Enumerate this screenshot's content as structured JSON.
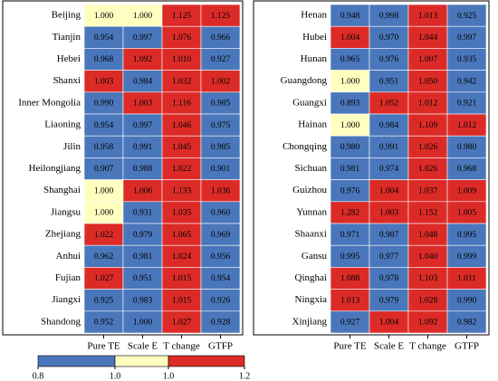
{
  "chart_data": [
    {
      "type": "heatmap",
      "columns": [
        "Pure TE",
        "Scale E",
        "T change",
        "GTFP"
      ],
      "rows": [
        "Beijing",
        "Tianjin",
        "Hebei",
        "Shanxi",
        "Inner Mongolia",
        "Liaoning",
        "Jilin",
        "Heilongjiang",
        "Shanghai",
        "Jiangsu",
        "Zhejiang",
        "Anhui",
        "Fujian",
        "Jiangxi",
        "Shandong"
      ],
      "values": [
        [
          1.0,
          1.0,
          1.125,
          1.125
        ],
        [
          0.954,
          0.997,
          1.076,
          0.966
        ],
        [
          0.968,
          1.092,
          1.01,
          0.927
        ],
        [
          1.003,
          0.984,
          1.032,
          1.002
        ],
        [
          0.99,
          1.003,
          1.116,
          0.985
        ],
        [
          0.954,
          0.997,
          1.046,
          0.975
        ],
        [
          0.958,
          0.991,
          1.045,
          0.985
        ],
        [
          0.907,
          0.988,
          1.022,
          0.901
        ],
        [
          1.0,
          1.006,
          1.133,
          1.036
        ],
        [
          1.0,
          0.931,
          1.035,
          0.96
        ],
        [
          1.022,
          0.979,
          1.065,
          0.969
        ],
        [
          0.962,
          0.981,
          1.024,
          0.956
        ],
        [
          1.027,
          0.951,
          1.015,
          0.954
        ],
        [
          0.925,
          0.983,
          1.015,
          0.926
        ],
        [
          0.952,
          0.9996,
          1.027,
          0.928
        ]
      ],
      "value_labels": [
        [
          "1.000",
          "1.000",
          "1.125",
          "1.125"
        ],
        [
          "0.954",
          "0.997",
          "1.076",
          "0.966"
        ],
        [
          "0.968",
          "1.092",
          "1.010",
          "0.927"
        ],
        [
          "1.003",
          "0.984",
          "1.032",
          "1.002"
        ],
        [
          "0.990",
          "1.003",
          "1.116",
          "0.985"
        ],
        [
          "0.954",
          "0.997",
          "1.046",
          "0.975"
        ],
        [
          "0.958",
          "0.991",
          "1.045",
          "0.985"
        ],
        [
          "0.907",
          "0.988",
          "1.022",
          "0.901"
        ],
        [
          "1.000",
          "1.006",
          "1.133",
          "1.036"
        ],
        [
          "1.000",
          "0.931",
          "1.035",
          "0.960"
        ],
        [
          "1.022",
          "0.979",
          "1.065",
          "0.969"
        ],
        [
          "0.962",
          "0.981",
          "1.024",
          "0.956"
        ],
        [
          "1.027",
          "0.951",
          "1.015",
          "0.954"
        ],
        [
          "0.925",
          "0.983",
          "1.015",
          "0.926"
        ],
        [
          "0.952",
          "1.000",
          "1.027",
          "0.928"
        ]
      ],
      "color_scale": {
        "ticks": [
          0.8,
          {
            "value": 1,
            "label": "1.0"
          },
          {
            "value": 1,
            "label": "1.0"
          },
          1.2
        ],
        "colors": [
          "#4a77bb",
          "#ffffc0",
          "#dc2b27"
        ]
      }
    },
    {
      "type": "heatmap",
      "columns": [
        "Pure TE",
        "Scale E",
        "T change",
        "GTFP"
      ],
      "rows": [
        "Henan",
        "Hubei",
        "Hunan",
        "Guangdong",
        "Guangxi",
        "Hainan",
        "Chongqing",
        "Sichuan",
        "Guizhou",
        "Yunnan",
        "Shaanxi",
        "Gansu",
        "Qinghai",
        "Ningxia",
        "Xinjiang"
      ],
      "values": [
        [
          0.948,
          0.998,
          1.013,
          0.925
        ],
        [
          1.004,
          0.97,
          1.044,
          0.997
        ],
        [
          0.965,
          0.976,
          1.007,
          0.935
        ],
        [
          1.0,
          0.951,
          1.05,
          0.942
        ],
        [
          0.893,
          1.052,
          1.012,
          0.921
        ],
        [
          1.0,
          0.984,
          1.109,
          1.012
        ],
        [
          0.98,
          0.991,
          1.026,
          0.98
        ],
        [
          0.981,
          0.974,
          1.026,
          0.968
        ],
        [
          0.976,
          1.004,
          1.037,
          1.009
        ],
        [
          1.282,
          1.003,
          1.152,
          1.005
        ],
        [
          0.971,
          0.987,
          1.048,
          0.995
        ],
        [
          0.995,
          0.977,
          1.04,
          0.999
        ],
        [
          1.088,
          0.978,
          1.103,
          1.011
        ],
        [
          1.013,
          0.979,
          1.028,
          0.99
        ],
        [
          0.927,
          1.004,
          1.092,
          0.982
        ]
      ],
      "value_labels": [
        [
          "0.948",
          "0.998",
          "1.013",
          "0.925"
        ],
        [
          "1.004",
          "0.970",
          "1.044",
          "0.997"
        ],
        [
          "0.965",
          "0.976",
          "1.007",
          "0.935"
        ],
        [
          "1.000",
          "0.951",
          "1.050",
          "0.942"
        ],
        [
          "0.893",
          "1.052",
          "1.012",
          "0.921"
        ],
        [
          "1.000",
          "0.984",
          "1.109",
          "1.012"
        ],
        [
          "0.980",
          "0.991",
          "1.026",
          "0.980"
        ],
        [
          "0.981",
          "0.974",
          "1.026",
          "0.968"
        ],
        [
          "0.976",
          "1.004",
          "1.037",
          "1.009"
        ],
        [
          "1.282",
          "1.003",
          "1.152",
          "1.005"
        ],
        [
          "0.971",
          "0.987",
          "1.048",
          "0.995"
        ],
        [
          "0.995",
          "0.977",
          "1.040",
          "0.999"
        ],
        [
          "1.088",
          "0.978",
          "1.103",
          "1.011"
        ],
        [
          "1.013",
          "0.979",
          "1.028",
          "0.990"
        ],
        [
          "0.927",
          "1.004",
          "1.092",
          "0.982"
        ]
      ]
    }
  ]
}
